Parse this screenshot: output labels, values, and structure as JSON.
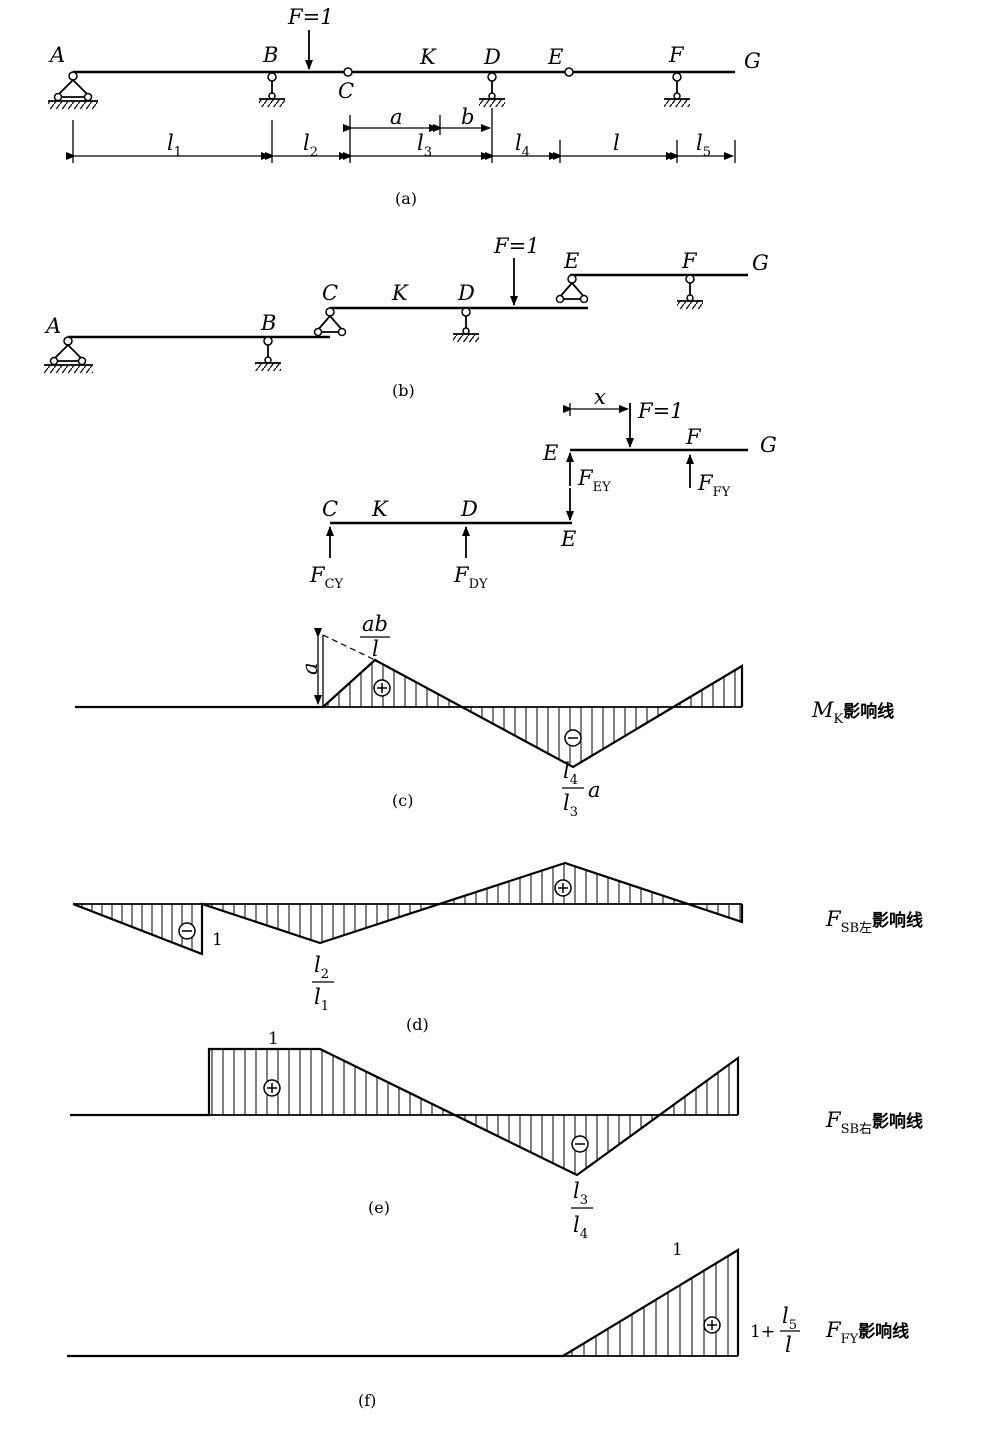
{
  "labels": {
    "A": "A",
    "B": "B",
    "C": "C",
    "D": "D",
    "E": "E",
    "F": "F",
    "G": "G",
    "K": "K",
    "force": "F=1",
    "l": "l",
    "a": "a",
    "b": "b",
    "x": "x",
    "sub_CY": "CY",
    "sub_DY": "DY",
    "sub_EY": "EY",
    "sub_FY": "FY",
    "sub_1": "1",
    "sub_2": "2",
    "sub_3": "3",
    "sub_4": "4",
    "sub_5": "5",
    "one": "1",
    "plus": "+",
    "one_plus": "1+",
    "M": "M",
    "sub_K": "K",
    "sub_SB_left": "SB左",
    "sub_SB_right": "SB右",
    "influence_line": "影响线",
    "ab": "ab"
  },
  "captions": {
    "a": "(a)",
    "b": "(b)",
    "c": "(c)",
    "d": "(d)",
    "e": "(e)",
    "f": "(f)"
  },
  "influence_lines": {
    "MK": {
      "a_level": "a",
      "peak": "ab/l",
      "trough": "(l4/l3)a"
    },
    "FSB_left": {
      "jump": "1",
      "trough": "l2/l1"
    },
    "FSB_right": {
      "plateau": "1",
      "trough": "l3/l4"
    },
    "FFY": {
      "label": "1",
      "end": "1+l5/l"
    }
  }
}
